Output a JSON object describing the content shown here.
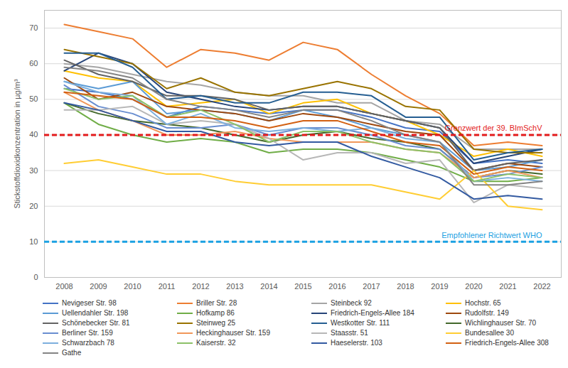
{
  "chart_data": {
    "type": "line",
    "y_label": "Stickstoffdioxidkonzentration in µg/m³",
    "categories": [
      "2008",
      "2009",
      "2010",
      "2011",
      "2012",
      "2013",
      "2014",
      "2015",
      "2016",
      "2017",
      "2018",
      "2019",
      "2020",
      "2021",
      "2022"
    ],
    "ylim": [
      0,
      75
    ],
    "yticks": [
      0,
      10,
      20,
      30,
      40,
      50,
      60,
      70
    ],
    "grid": true,
    "legend": "bottom",
    "reference_lines": [
      {
        "value": 40,
        "label": "Grenzwert der 39. BImSchV",
        "color": "#e31a1c",
        "line_style": "dashed"
      },
      {
        "value": 10,
        "label": "Empfohlener Richtwert WHO",
        "color": "#1ba1e2",
        "line_style": "dashed"
      }
    ],
    "series": [
      {
        "name": "Nevigeser Str. 98",
        "color": "#4472c4",
        "values": [
          53,
          52,
          50,
          45,
          48,
          47,
          46,
          47,
          47,
          45,
          42,
          41,
          32,
          33,
          32
        ]
      },
      {
        "name": "Briller Str. 28",
        "color": "#ed7d31",
        "values": [
          71,
          69,
          67,
          59,
          64,
          63,
          61,
          66,
          64,
          57,
          51,
          46,
          37,
          38,
          37
        ]
      },
      {
        "name": "Steinbeck 92",
        "color": "#a5a5a5",
        "values": [
          60,
          59,
          57,
          55,
          54,
          52,
          51,
          51,
          49,
          49,
          44,
          43,
          36,
          36,
          36
        ]
      },
      {
        "name": "Hochstr. 65",
        "color": "#ffc000",
        "values": [
          58,
          56,
          55,
          48,
          49,
          50,
          46,
          49,
          50,
          46,
          44,
          40,
          34,
          36,
          34
        ]
      },
      {
        "name": "Uellendahler Str. 198",
        "color": "#5b9bd5",
        "values": [
          55,
          53,
          55,
          46,
          47,
          46,
          44,
          47,
          45,
          42,
          40,
          38,
          30,
          31,
          33
        ]
      },
      {
        "name": "Hofkamp 86",
        "color": "#70ad47",
        "values": [
          49,
          43,
          40,
          38,
          39,
          38,
          35,
          36,
          36,
          35,
          33,
          31,
          27,
          27,
          28
        ]
      },
      {
        "name": "Friedrich-Engels-Allee 184",
        "color": "#264478",
        "values": [
          58,
          63,
          60,
          52,
          50,
          48,
          47,
          48,
          48,
          46,
          44,
          42,
          32,
          34,
          36
        ]
      },
      {
        "name": "Rudolfstr. 149",
        "color": "#9e480e",
        "values": [
          56,
          50,
          52,
          48,
          47,
          46,
          44,
          46,
          45,
          43,
          41,
          40,
          30,
          32,
          31
        ]
      },
      {
        "name": "Schönebecker Str. 81",
        "color": "#636363",
        "values": [
          61,
          57,
          55,
          51,
          51,
          50,
          47,
          48,
          48,
          46,
          44,
          42,
          30,
          32,
          33
        ]
      },
      {
        "name": "Steinweg 25",
        "color": "#997300",
        "values": [
          64,
          62,
          60,
          53,
          56,
          52,
          51,
          53,
          55,
          53,
          48,
          47,
          36,
          35,
          35
        ]
      },
      {
        "name": "Westkotter Str. 111",
        "color": "#255e91",
        "values": [
          63,
          63,
          59,
          50,
          51,
          49,
          49,
          52,
          52,
          51,
          45,
          45,
          33,
          35,
          36
        ]
      },
      {
        "name": "Wichlinghauser Str. 70",
        "color": "#43682b",
        "values": [
          49,
          46,
          44,
          43,
          42,
          40,
          38,
          40,
          41,
          39,
          38,
          36,
          28,
          30,
          29
        ]
      },
      {
        "name": "Berliner Str. 159",
        "color": "#698ed0",
        "values": [
          54,
          48,
          46,
          42,
          42,
          43,
          40,
          42,
          42,
          40,
          37,
          36,
          28,
          29,
          31
        ]
      },
      {
        "name": "Heckinghauser Str. 159",
        "color": "#f1975a",
        "values": [
          52,
          47,
          44,
          40,
          40,
          41,
          39,
          38,
          38,
          38,
          36,
          35,
          28,
          30,
          28
        ]
      },
      {
        "name": "Staasstr. 51",
        "color": "#b7b7b7",
        "values": [
          47,
          47,
          48,
          43,
          44,
          43,
          39,
          33,
          35,
          35,
          32,
          33,
          21,
          26,
          25
        ]
      },
      {
        "name": "Bundesallee 30",
        "color": "#ffcd33",
        "values": [
          32,
          33,
          31,
          29,
          29,
          27,
          26,
          26,
          26,
          26,
          24,
          22,
          30,
          20,
          19
        ]
      },
      {
        "name": "Schwarzbach 78",
        "color": "#7cafdd",
        "values": [
          55,
          52,
          51,
          43,
          46,
          42,
          41,
          42,
          41,
          42,
          39,
          38,
          27,
          28,
          27
        ]
      },
      {
        "name": "Kaiserstr. 32",
        "color": "#8cc168",
        "values": [
          53,
          50,
          51,
          45,
          47,
          43,
          38,
          41,
          41,
          38,
          36,
          35,
          27,
          29,
          28
        ]
      },
      {
        "name": "Haeselerstr. 103",
        "color": "#335aa1",
        "values": [
          49,
          47,
          44,
          41,
          41,
          38,
          37,
          38,
          38,
          34,
          31,
          28,
          22,
          23,
          22
        ]
      },
      {
        "name": "Friedrich-Engels-Allee 308",
        "color": "#d26012",
        "values": [
          52,
          51,
          50,
          45,
          45,
          44,
          42,
          44,
          44,
          41,
          38,
          37,
          29,
          31,
          30
        ]
      },
      {
        "name": "Gathe",
        "color": "#848484",
        "values": [
          59,
          58,
          56,
          50,
          48,
          47,
          45,
          47,
          47,
          44,
          40,
          38,
          26,
          26,
          27
        ]
      }
    ]
  }
}
